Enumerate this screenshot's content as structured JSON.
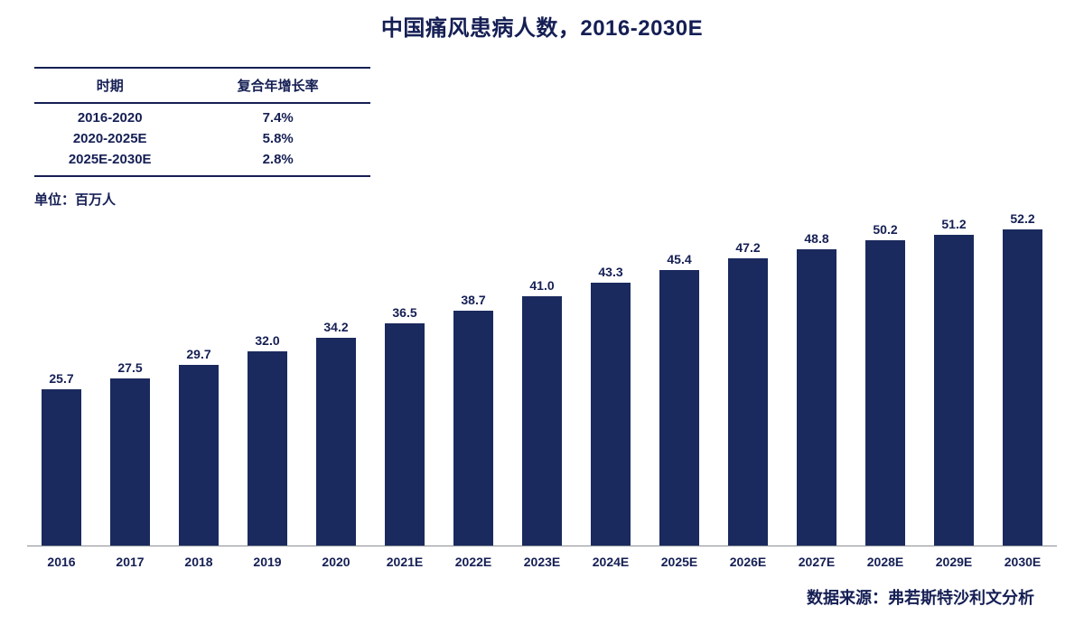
{
  "title": "中国痛风患病人数，2016-2030E",
  "cagr_table": {
    "headers": [
      "时期",
      "复合年增长率"
    ],
    "rows": [
      {
        "period": "2016-2020",
        "cagr": "7.4%"
      },
      {
        "period": "2020-2025E",
        "cagr": "5.8%"
      },
      {
        "period": "2025E-2030E",
        "cagr": "2.8%"
      }
    ]
  },
  "unit_label": "单位：百万人",
  "source": "数据来源：弗若斯特沙利文分析",
  "colors": {
    "bar": "#1a2a5e",
    "text": "#151f54"
  },
  "chart_data": {
    "type": "bar",
    "title": "中国痛风患病人数，2016-2030E",
    "categories": [
      "2016",
      "2017",
      "2018",
      "2019",
      "2020",
      "2021E",
      "2022E",
      "2023E",
      "2024E",
      "2025E",
      "2026E",
      "2027E",
      "2028E",
      "2029E",
      "2030E"
    ],
    "values": [
      25.7,
      27.5,
      29.7,
      32.0,
      34.2,
      36.5,
      38.7,
      41.0,
      43.3,
      45.4,
      47.2,
      48.8,
      50.2,
      51.2,
      52.2
    ],
    "xlabel": "",
    "ylabel": "百万人",
    "ylim": [
      0,
      55
    ],
    "grid": false,
    "legend": false,
    "value_labels": true,
    "bar_color": "#1a2a5e"
  }
}
